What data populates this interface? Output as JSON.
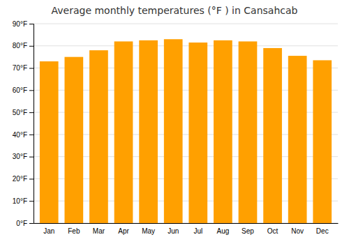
{
  "chart_data": {
    "type": "bar",
    "title": "Average monthly temperatures (°F ) in Cansahcab",
    "categories": [
      "Jan",
      "Feb",
      "Mar",
      "Apr",
      "May",
      "Jun",
      "Jul",
      "Aug",
      "Sep",
      "Oct",
      "Nov",
      "Dec"
    ],
    "values": [
      73,
      75,
      78,
      82,
      82.5,
      83,
      81.5,
      82.5,
      82,
      79,
      75.5,
      73.5
    ],
    "color": "#FFA000",
    "ylim": [
      0,
      90
    ],
    "yticks": [
      {
        "value": 0,
        "label": "0°F"
      },
      {
        "value": 10,
        "label": "10°F"
      },
      {
        "value": 20,
        "label": "20°F"
      },
      {
        "value": 30,
        "label": "30°F"
      },
      {
        "value": 40,
        "label": "40°F"
      },
      {
        "value": 50,
        "label": "50°F"
      },
      {
        "value": 60,
        "label": "60°F"
      },
      {
        "value": 70,
        "label": "70°F"
      },
      {
        "value": 80,
        "label": "80°F"
      },
      {
        "value": 90,
        "label": "90°F"
      }
    ],
    "grid": true
  }
}
